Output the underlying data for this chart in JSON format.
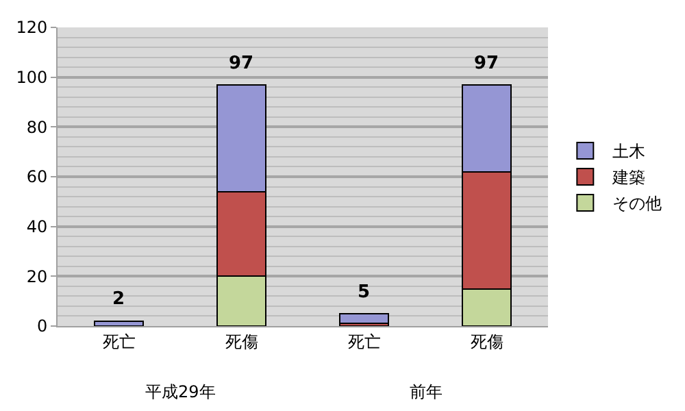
{
  "chart_data": {
    "type": "bar",
    "stacked": true,
    "categories": [
      "死亡",
      "死傷",
      "死亡",
      "死傷"
    ],
    "series": [
      {
        "name": "その他",
        "color": "#c4d79b",
        "values": [
          0,
          20,
          0,
          15
        ]
      },
      {
        "name": "建築",
        "color": "#c0504d",
        "values": [
          0,
          34,
          1,
          47
        ]
      },
      {
        "name": "土木",
        "color": "#9596d4",
        "values": [
          2,
          43,
          4,
          35
        ]
      }
    ],
    "totals": [
      "2",
      "97",
      "5",
      "97"
    ],
    "annotations": [
      "平成29年",
      "前年"
    ],
    "ylim": [
      0,
      120
    ],
    "yticks": [
      0,
      20,
      40,
      60,
      80,
      100,
      120
    ],
    "grid": "y",
    "legend": "right"
  }
}
